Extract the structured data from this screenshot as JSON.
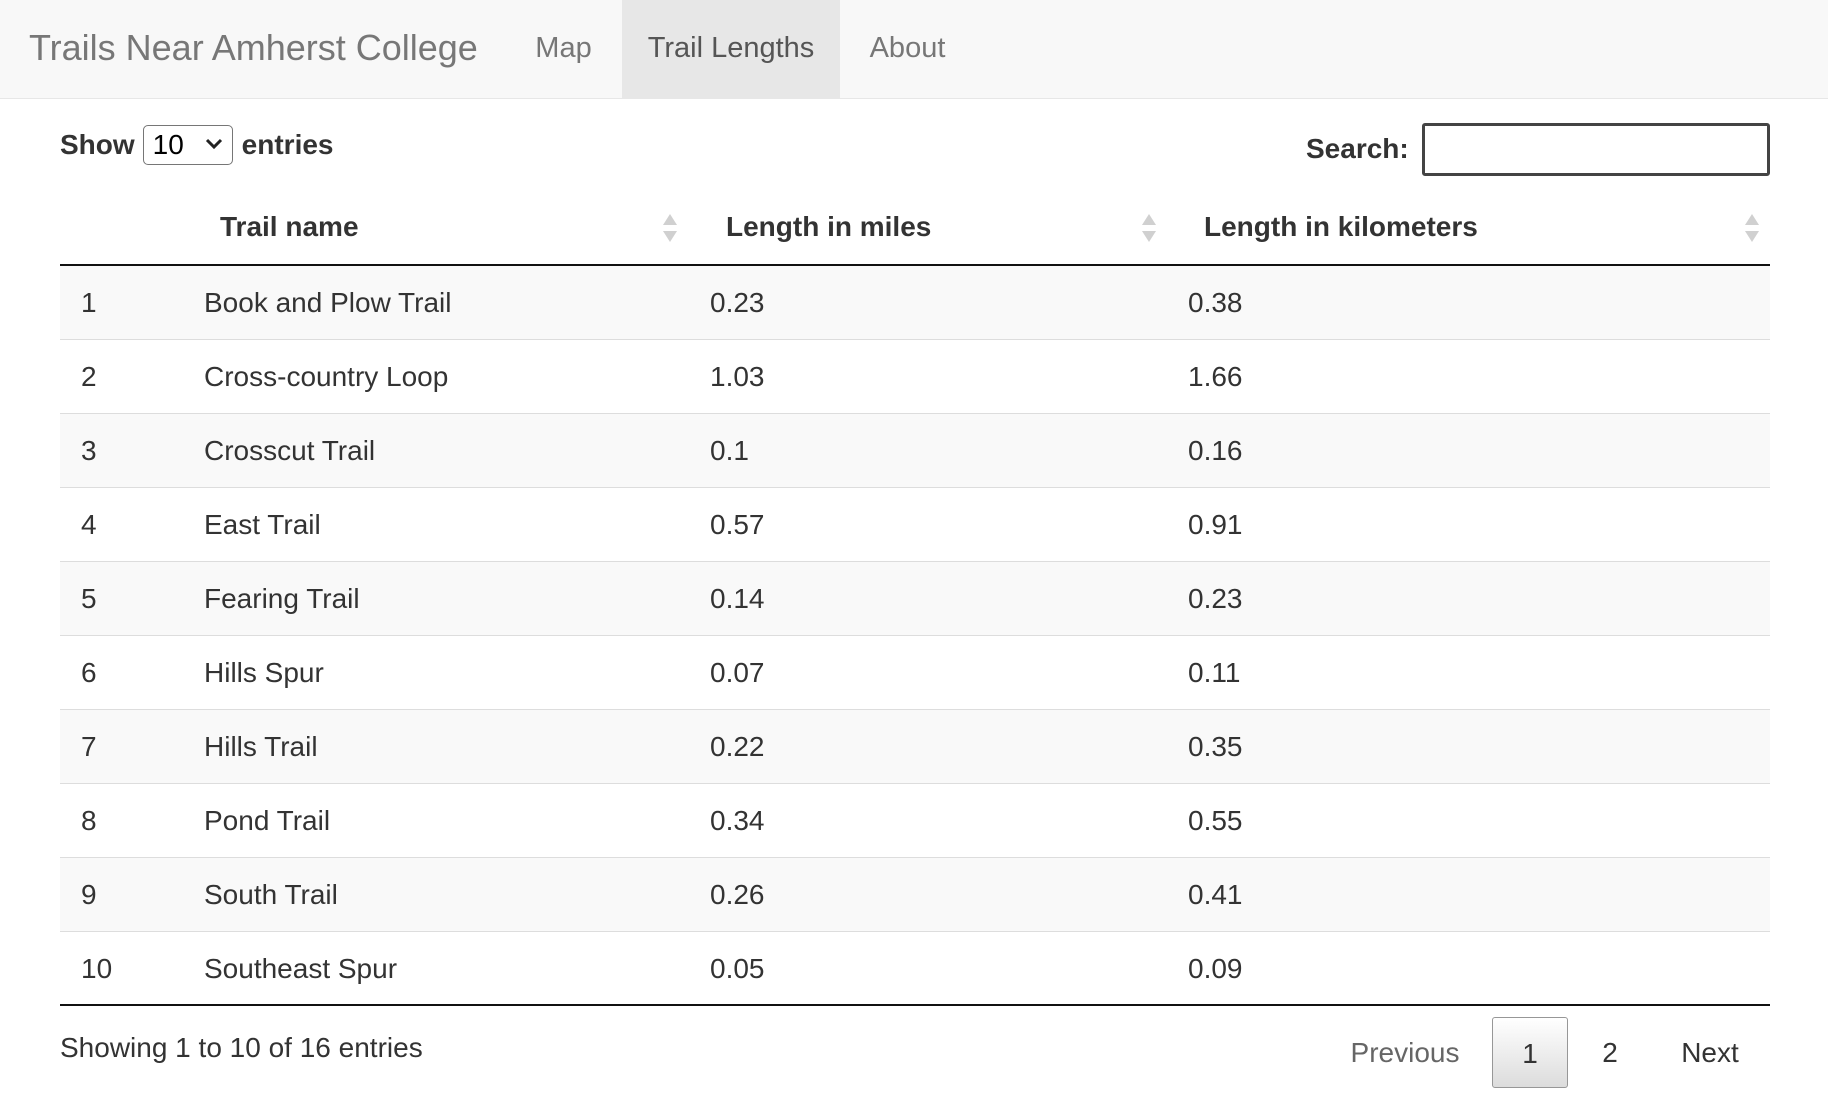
{
  "navbar": {
    "brand": "Trails Near Amherst College",
    "tabs": [
      {
        "label": "Map",
        "active": false
      },
      {
        "label": "Trail Lengths",
        "active": true
      },
      {
        "label": "About",
        "active": false
      }
    ]
  },
  "controls": {
    "show_label": "Show",
    "page_size": "10",
    "entries_label": "entries",
    "search_label": "Search:",
    "search_value": ""
  },
  "table": {
    "columns": [
      "Trail name",
      "Length in miles",
      "Length in kilometers"
    ],
    "rows": [
      {
        "index": "1",
        "name": "Book and Plow Trail",
        "miles": "0.23",
        "km": "0.38"
      },
      {
        "index": "2",
        "name": "Cross-country Loop",
        "miles": "1.03",
        "km": "1.66"
      },
      {
        "index": "3",
        "name": "Crosscut Trail",
        "miles": "0.1",
        "km": "0.16"
      },
      {
        "index": "4",
        "name": "East Trail",
        "miles": "0.57",
        "km": "0.91"
      },
      {
        "index": "5",
        "name": "Fearing Trail",
        "miles": "0.14",
        "km": "0.23"
      },
      {
        "index": "6",
        "name": "Hills Spur",
        "miles": "0.07",
        "km": "0.11"
      },
      {
        "index": "7",
        "name": "Hills Trail",
        "miles": "0.22",
        "km": "0.35"
      },
      {
        "index": "8",
        "name": "Pond Trail",
        "miles": "0.34",
        "km": "0.55"
      },
      {
        "index": "9",
        "name": "South Trail",
        "miles": "0.26",
        "km": "0.41"
      },
      {
        "index": "10",
        "name": "Southeast Spur",
        "miles": "0.05",
        "km": "0.09"
      }
    ]
  },
  "footer": {
    "info": "Showing 1 to 10 of 16 entries",
    "pagination": {
      "previous": "Previous",
      "pages": [
        "1",
        "2"
      ],
      "current": "1",
      "next": "Next"
    }
  },
  "colors": {
    "navbar_bg": "#f8f8f8",
    "active_tab_bg": "#e7e7e7",
    "striped_row_bg": "#f9f9f9"
  }
}
